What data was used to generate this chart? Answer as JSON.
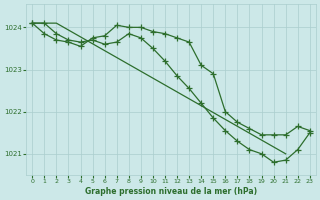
{
  "title": "Graphe pression niveau de la mer (hPa)",
  "bg_color": "#cce8e8",
  "grid_color": "#aacece",
  "line_color": "#2d6e2d",
  "xlim": [
    -0.5,
    23.5
  ],
  "ylim": [
    1020.5,
    1024.55
  ],
  "yticks": [
    1021,
    1022,
    1023,
    1024
  ],
  "xticks": [
    0,
    1,
    2,
    3,
    4,
    5,
    6,
    7,
    8,
    9,
    10,
    11,
    12,
    13,
    14,
    15,
    16,
    17,
    18,
    19,
    20,
    21,
    22,
    23
  ],
  "series1_x": [
    0,
    2,
    21
  ],
  "series1_y": [
    1024.1,
    1024.1,
    1021.0
  ],
  "series2_x": [
    0,
    1,
    2,
    3,
    4,
    5,
    6,
    7,
    8,
    9,
    10,
    11,
    12,
    13,
    14,
    15,
    16,
    17,
    18,
    19,
    20,
    21,
    22,
    23
  ],
  "series2_y": [
    1024.1,
    1023.85,
    1023.7,
    1023.65,
    1023.55,
    1023.75,
    1023.8,
    1024.05,
    1024.0,
    1024.0,
    1023.9,
    1023.85,
    1023.75,
    1023.65,
    1023.1,
    1022.9,
    1022.0,
    1021.75,
    1021.6,
    1021.45,
    1021.45,
    1021.45,
    1021.65,
    1021.55
  ],
  "series3_x": [
    0,
    1,
    2,
    3,
    4,
    5,
    6,
    7,
    8,
    9,
    10,
    11,
    12,
    13,
    14,
    15,
    16,
    17,
    18,
    19,
    20,
    21,
    22,
    23
  ],
  "series3_y": [
    1024.1,
    1024.1,
    1023.85,
    1023.7,
    1023.65,
    1023.7,
    1023.6,
    1023.65,
    1023.85,
    1023.75,
    1023.5,
    1023.2,
    1022.85,
    1022.55,
    1022.2,
    1021.85,
    1021.55,
    1021.3,
    1021.1,
    1021.0,
    1020.8,
    1020.85,
    1021.1,
    1021.5
  ]
}
